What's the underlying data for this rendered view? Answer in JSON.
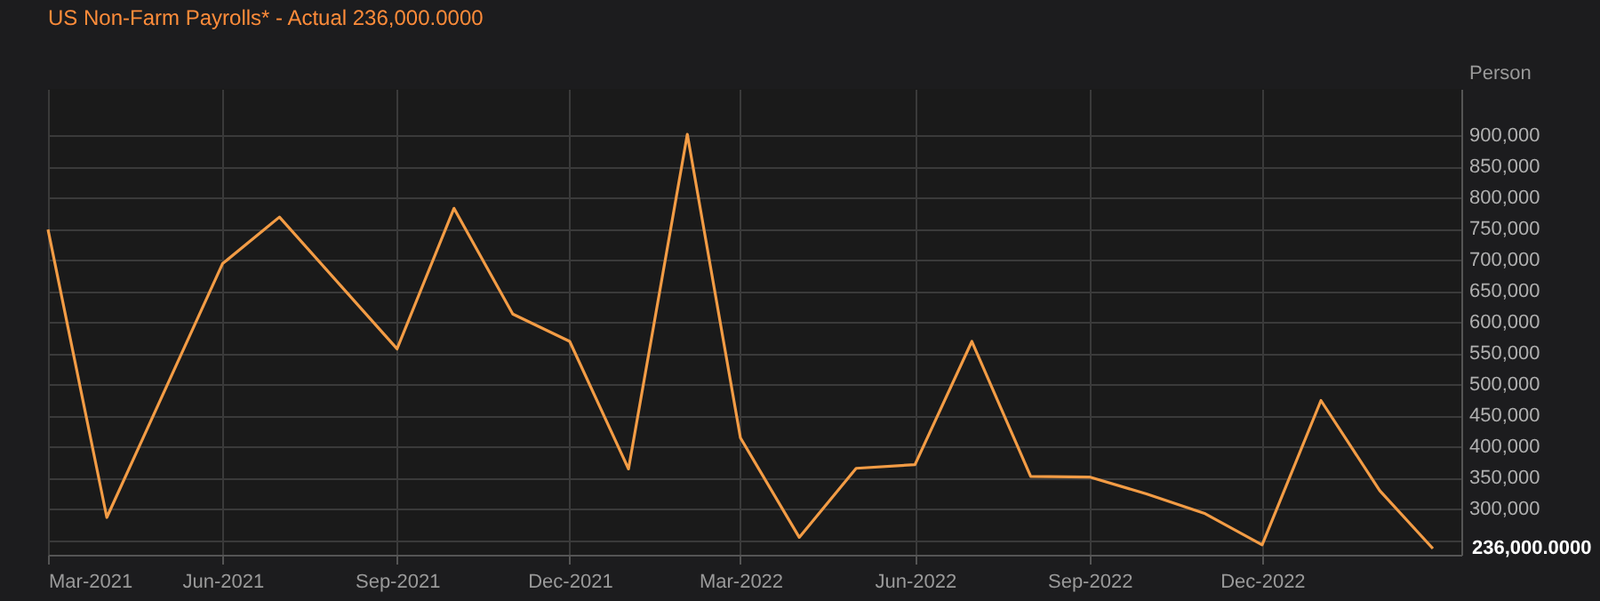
{
  "chart_data": {
    "type": "line",
    "title": "US Non-Farm Payrolls* - Actual 236,000.0000",
    "ylabel": "Person",
    "x": [
      "2021-03",
      "2021-04",
      "2021-06",
      "2021-07",
      "2021-09",
      "2021-10",
      "2021-11",
      "2021-12",
      "2022-01",
      "2022-02",
      "2022-03",
      "2022-04",
      "2022-05",
      "2022-06",
      "2022-07",
      "2022-08",
      "2022-09",
      "2022-10",
      "2022-11",
      "2022-12",
      "2023-01",
      "2023-02",
      "2023-03"
    ],
    "series": [
      {
        "color": "#f39c45",
        "values": [
          749000,
          286000,
          694000,
          769000,
          557000,
          783000,
          613000,
          569000,
          364000,
          902000,
          414000,
          254000,
          365000,
          371000,
          569000,
          352000,
          351000,
          324000,
          292000,
          242000,
          474000,
          329000,
          236000
        ]
      }
    ],
    "xlim": [
      "2021-03-01",
      "2023-03-16"
    ],
    "xticks": [
      {
        "value": "2021-03",
        "label": "Mar-2021"
      },
      {
        "value": "2021-06",
        "label": "Jun-2021"
      },
      {
        "value": "2021-09",
        "label": "Sep-2021"
      },
      {
        "value": "2021-12",
        "label": "Dec-2021"
      },
      {
        "value": "2022-03",
        "label": "Mar-2022"
      },
      {
        "value": "2022-06",
        "label": "Jun-2022"
      },
      {
        "value": "2022-09",
        "label": "Sep-2022"
      },
      {
        "value": "2022-12",
        "label": "Dec-2022"
      }
    ],
    "ylim": [
      226000,
      975000
    ],
    "yticks": [
      {
        "value": 250000,
        "label": null
      },
      {
        "value": 300000,
        "label": "300,000"
      },
      {
        "value": 350000,
        "label": "350,000"
      },
      {
        "value": 400000,
        "label": "400,000"
      },
      {
        "value": 450000,
        "label": "450,000"
      },
      {
        "value": 500000,
        "label": "500,000"
      },
      {
        "value": 550000,
        "label": "550,000"
      },
      {
        "value": 600000,
        "label": "600,000"
      },
      {
        "value": 650000,
        "label": "650,000"
      },
      {
        "value": 700000,
        "label": "700,000"
      },
      {
        "value": 750000,
        "label": "750,000"
      },
      {
        "value": 800000,
        "label": "800,000"
      },
      {
        "value": 850000,
        "label": "850,000"
      },
      {
        "value": 900000,
        "label": "900,000"
      }
    ],
    "annotations": [
      {
        "text": "236,000.0000",
        "x": "2023-03",
        "y": 236000
      }
    ],
    "grid": true,
    "line_style": "solid",
    "marker": "none"
  }
}
